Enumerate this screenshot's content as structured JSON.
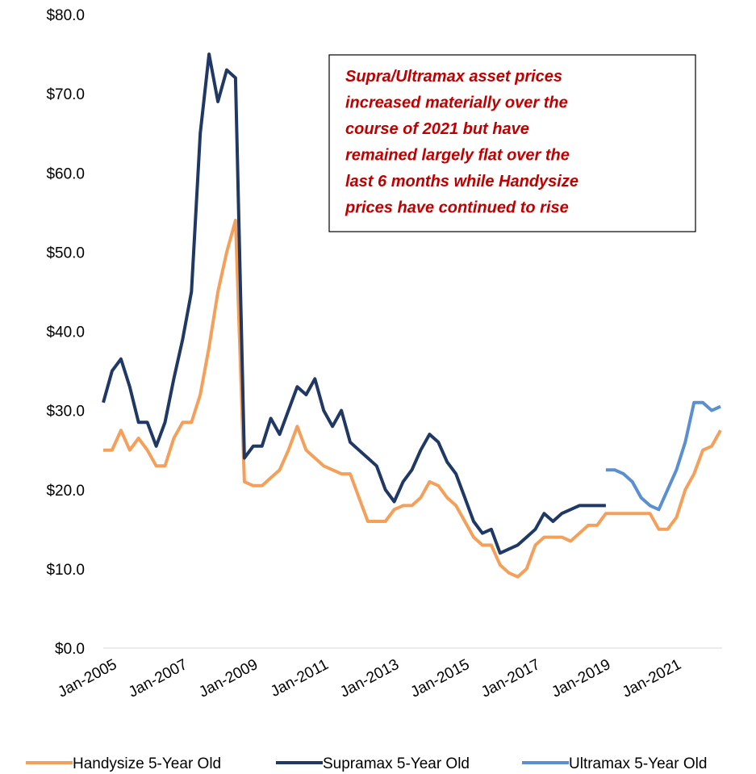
{
  "chart_data": {
    "type": "line",
    "annotation": [
      "Supra/Ultramax asset prices",
      "increased materially over the",
      "course of 2021 but have",
      "remained largely flat over the",
      "last 6 months while Handysize",
      "prices have continued to rise"
    ],
    "x": [
      "Jan-2005",
      "Apr-2005",
      "Jul-2005",
      "Oct-2005",
      "Jan-2006",
      "Apr-2006",
      "Jul-2006",
      "Oct-2006",
      "Jan-2007",
      "Apr-2007",
      "Jul-2007",
      "Oct-2007",
      "Jan-2008",
      "Apr-2008",
      "Jul-2008",
      "Oct-2008",
      "Jan-2009",
      "Apr-2009",
      "Jul-2009",
      "Oct-2009",
      "Jan-2010",
      "Apr-2010",
      "Jul-2010",
      "Oct-2010",
      "Jan-2011",
      "Apr-2011",
      "Jul-2011",
      "Oct-2011",
      "Jan-2012",
      "Apr-2012",
      "Jul-2012",
      "Oct-2012",
      "Jan-2013",
      "Apr-2013",
      "Jul-2013",
      "Oct-2013",
      "Jan-2014",
      "Apr-2014",
      "Jul-2014",
      "Oct-2014",
      "Jan-2015",
      "Apr-2015",
      "Jul-2015",
      "Oct-2015",
      "Jan-2016",
      "Apr-2016",
      "Jul-2016",
      "Oct-2016",
      "Jan-2017",
      "Apr-2017",
      "Jul-2017",
      "Oct-2017",
      "Jan-2018",
      "Apr-2018",
      "Jul-2018",
      "Oct-2018",
      "Jan-2019",
      "Apr-2019",
      "Jul-2019",
      "Oct-2019",
      "Jan-2020",
      "Apr-2020",
      "Jul-2020",
      "Oct-2020",
      "Jan-2021",
      "Apr-2021",
      "Jul-2021",
      "Oct-2021",
      "Jan-2022",
      "Apr-2022",
      "Jul-2022"
    ],
    "series": [
      {
        "name": "Handysize 5-Year Old",
        "color": "#f5a05a",
        "values": [
          25,
          25,
          27.5,
          25,
          26.5,
          25,
          23,
          23,
          26.5,
          28.5,
          28.5,
          32,
          38,
          45,
          50,
          54,
          21,
          20.5,
          20.5,
          21.5,
          22.5,
          25,
          28,
          25,
          24,
          23,
          22.5,
          22,
          22,
          19,
          16,
          16,
          16,
          17.5,
          18,
          18,
          19,
          21,
          20.5,
          19,
          18,
          16,
          14,
          13,
          13,
          10.5,
          9.5,
          9,
          10,
          13,
          14,
          14,
          14,
          13.5,
          14.5,
          15.5,
          15.5,
          17,
          17,
          17,
          17,
          17,
          17,
          15,
          15,
          16.5,
          20,
          22,
          25,
          25.5,
          27.5
        ]
      },
      {
        "name": "Supramax 5-Year Old",
        "color": "#203864",
        "values": [
          31,
          35,
          36.5,
          33,
          28.5,
          28.5,
          25.5,
          28.5,
          34,
          39,
          45,
          65,
          75,
          69,
          73,
          72,
          24,
          25.5,
          25.5,
          29,
          27,
          30,
          33,
          32,
          34,
          30,
          28,
          30,
          26,
          25,
          24,
          23,
          20,
          18.5,
          21,
          22.5,
          25,
          27,
          26,
          23.5,
          22,
          19,
          16,
          14.5,
          15,
          12,
          12.5,
          13,
          14,
          15,
          17,
          16,
          17,
          17.5,
          18,
          18,
          18,
          18,
          null,
          null,
          null,
          null,
          null,
          null,
          null,
          null,
          null,
          null,
          null,
          null,
          null
        ]
      },
      {
        "name": "Ultramax 5-Year Old",
        "color": "#5b8fd0",
        "values": [
          null,
          null,
          null,
          null,
          null,
          null,
          null,
          null,
          null,
          null,
          null,
          null,
          null,
          null,
          null,
          null,
          null,
          null,
          null,
          null,
          null,
          null,
          null,
          null,
          null,
          null,
          null,
          null,
          null,
          null,
          null,
          null,
          null,
          null,
          null,
          null,
          null,
          null,
          null,
          null,
          null,
          null,
          null,
          null,
          null,
          null,
          null,
          null,
          null,
          null,
          null,
          null,
          null,
          null,
          null,
          null,
          null,
          22.5,
          22.5,
          22,
          21,
          19,
          18,
          17.5,
          20,
          22.5,
          26,
          31,
          31,
          30,
          30.5
        ]
      }
    ],
    "xlim": [
      "Jan-2005",
      "Jul-2022"
    ],
    "xticks": [
      "Jan-2005",
      "Jan-2007",
      "Jan-2009",
      "Jan-2011",
      "Jan-2013",
      "Jan-2015",
      "Jan-2017",
      "Jan-2019",
      "Jan-2021"
    ],
    "ylim": [
      0,
      80
    ],
    "yticks": [
      {
        "value": 0,
        "label": "$0.0"
      },
      {
        "value": 10,
        "label": "$10.0"
      },
      {
        "value": 20,
        "label": "$20.0"
      },
      {
        "value": 30,
        "label": "$30.0"
      },
      {
        "value": 40,
        "label": "$40.0"
      },
      {
        "value": 50,
        "label": "$50.0"
      },
      {
        "value": 60,
        "label": "$60.0"
      },
      {
        "value": 70,
        "label": "$70.0"
      },
      {
        "value": 80,
        "label": "$80.0"
      }
    ],
    "grid": false,
    "legend": "bottom"
  }
}
